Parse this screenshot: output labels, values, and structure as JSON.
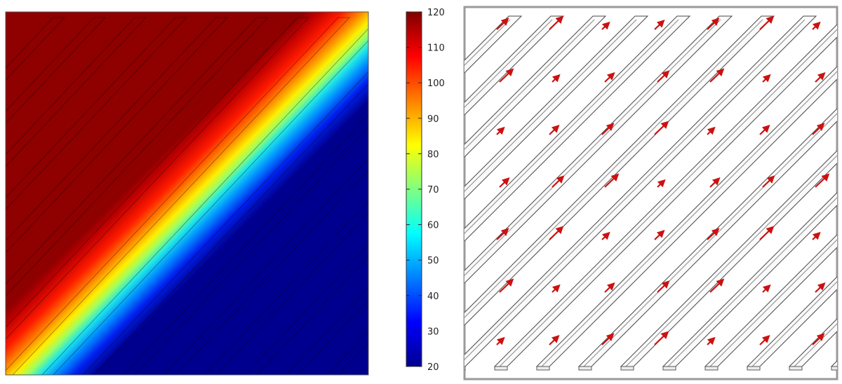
{
  "figure": {
    "left_panel": {
      "plot_type": "temperature-field"
    },
    "colorbar": {
      "min": 20,
      "max": 120,
      "colormap": "jet",
      "ticks": [
        "120",
        "110",
        "100",
        "90",
        "80",
        "70",
        "60",
        "50",
        "40",
        "30",
        "20"
      ]
    },
    "right_panel": {
      "plot_type": "velocity-arrows"
    }
  }
}
